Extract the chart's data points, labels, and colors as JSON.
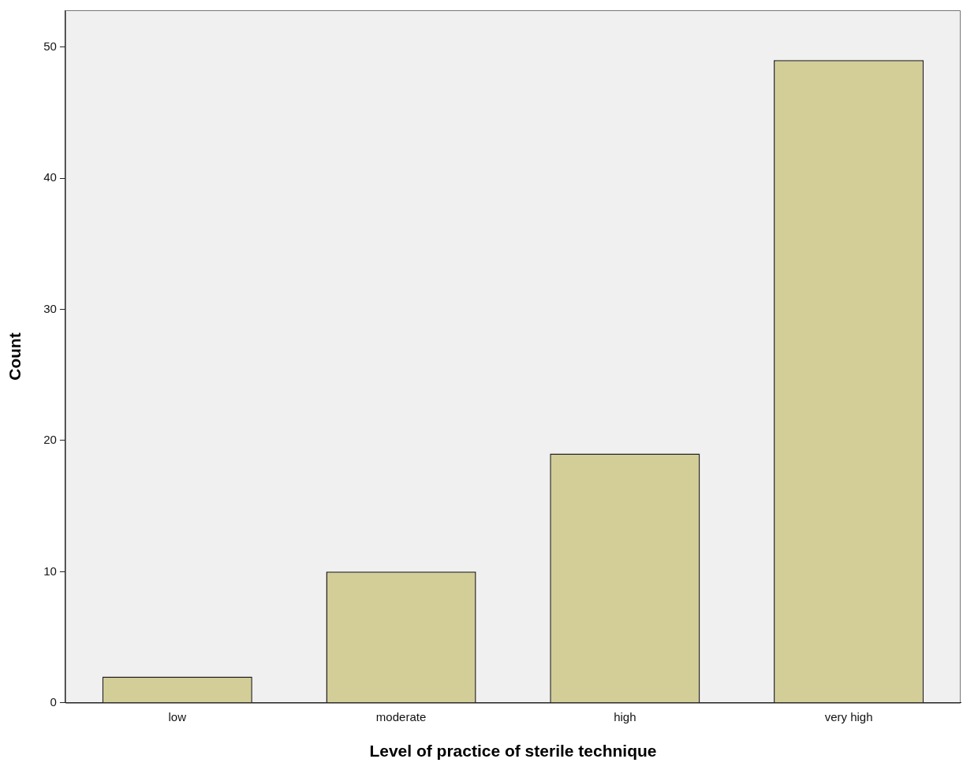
{
  "chart_data": {
    "type": "bar",
    "xlabel": "Level of practice of sterile technique",
    "ylabel": "Count",
    "categories": [
      "low",
      "moderate",
      "high",
      "very high"
    ],
    "values": [
      2,
      10,
      19,
      49
    ],
    "color": "#d3ce97",
    "ylim": [
      0,
      52.8
    ],
    "yticks": [
      0,
      10,
      20,
      30,
      40,
      50
    ],
    "grid": false,
    "legend": false
  }
}
